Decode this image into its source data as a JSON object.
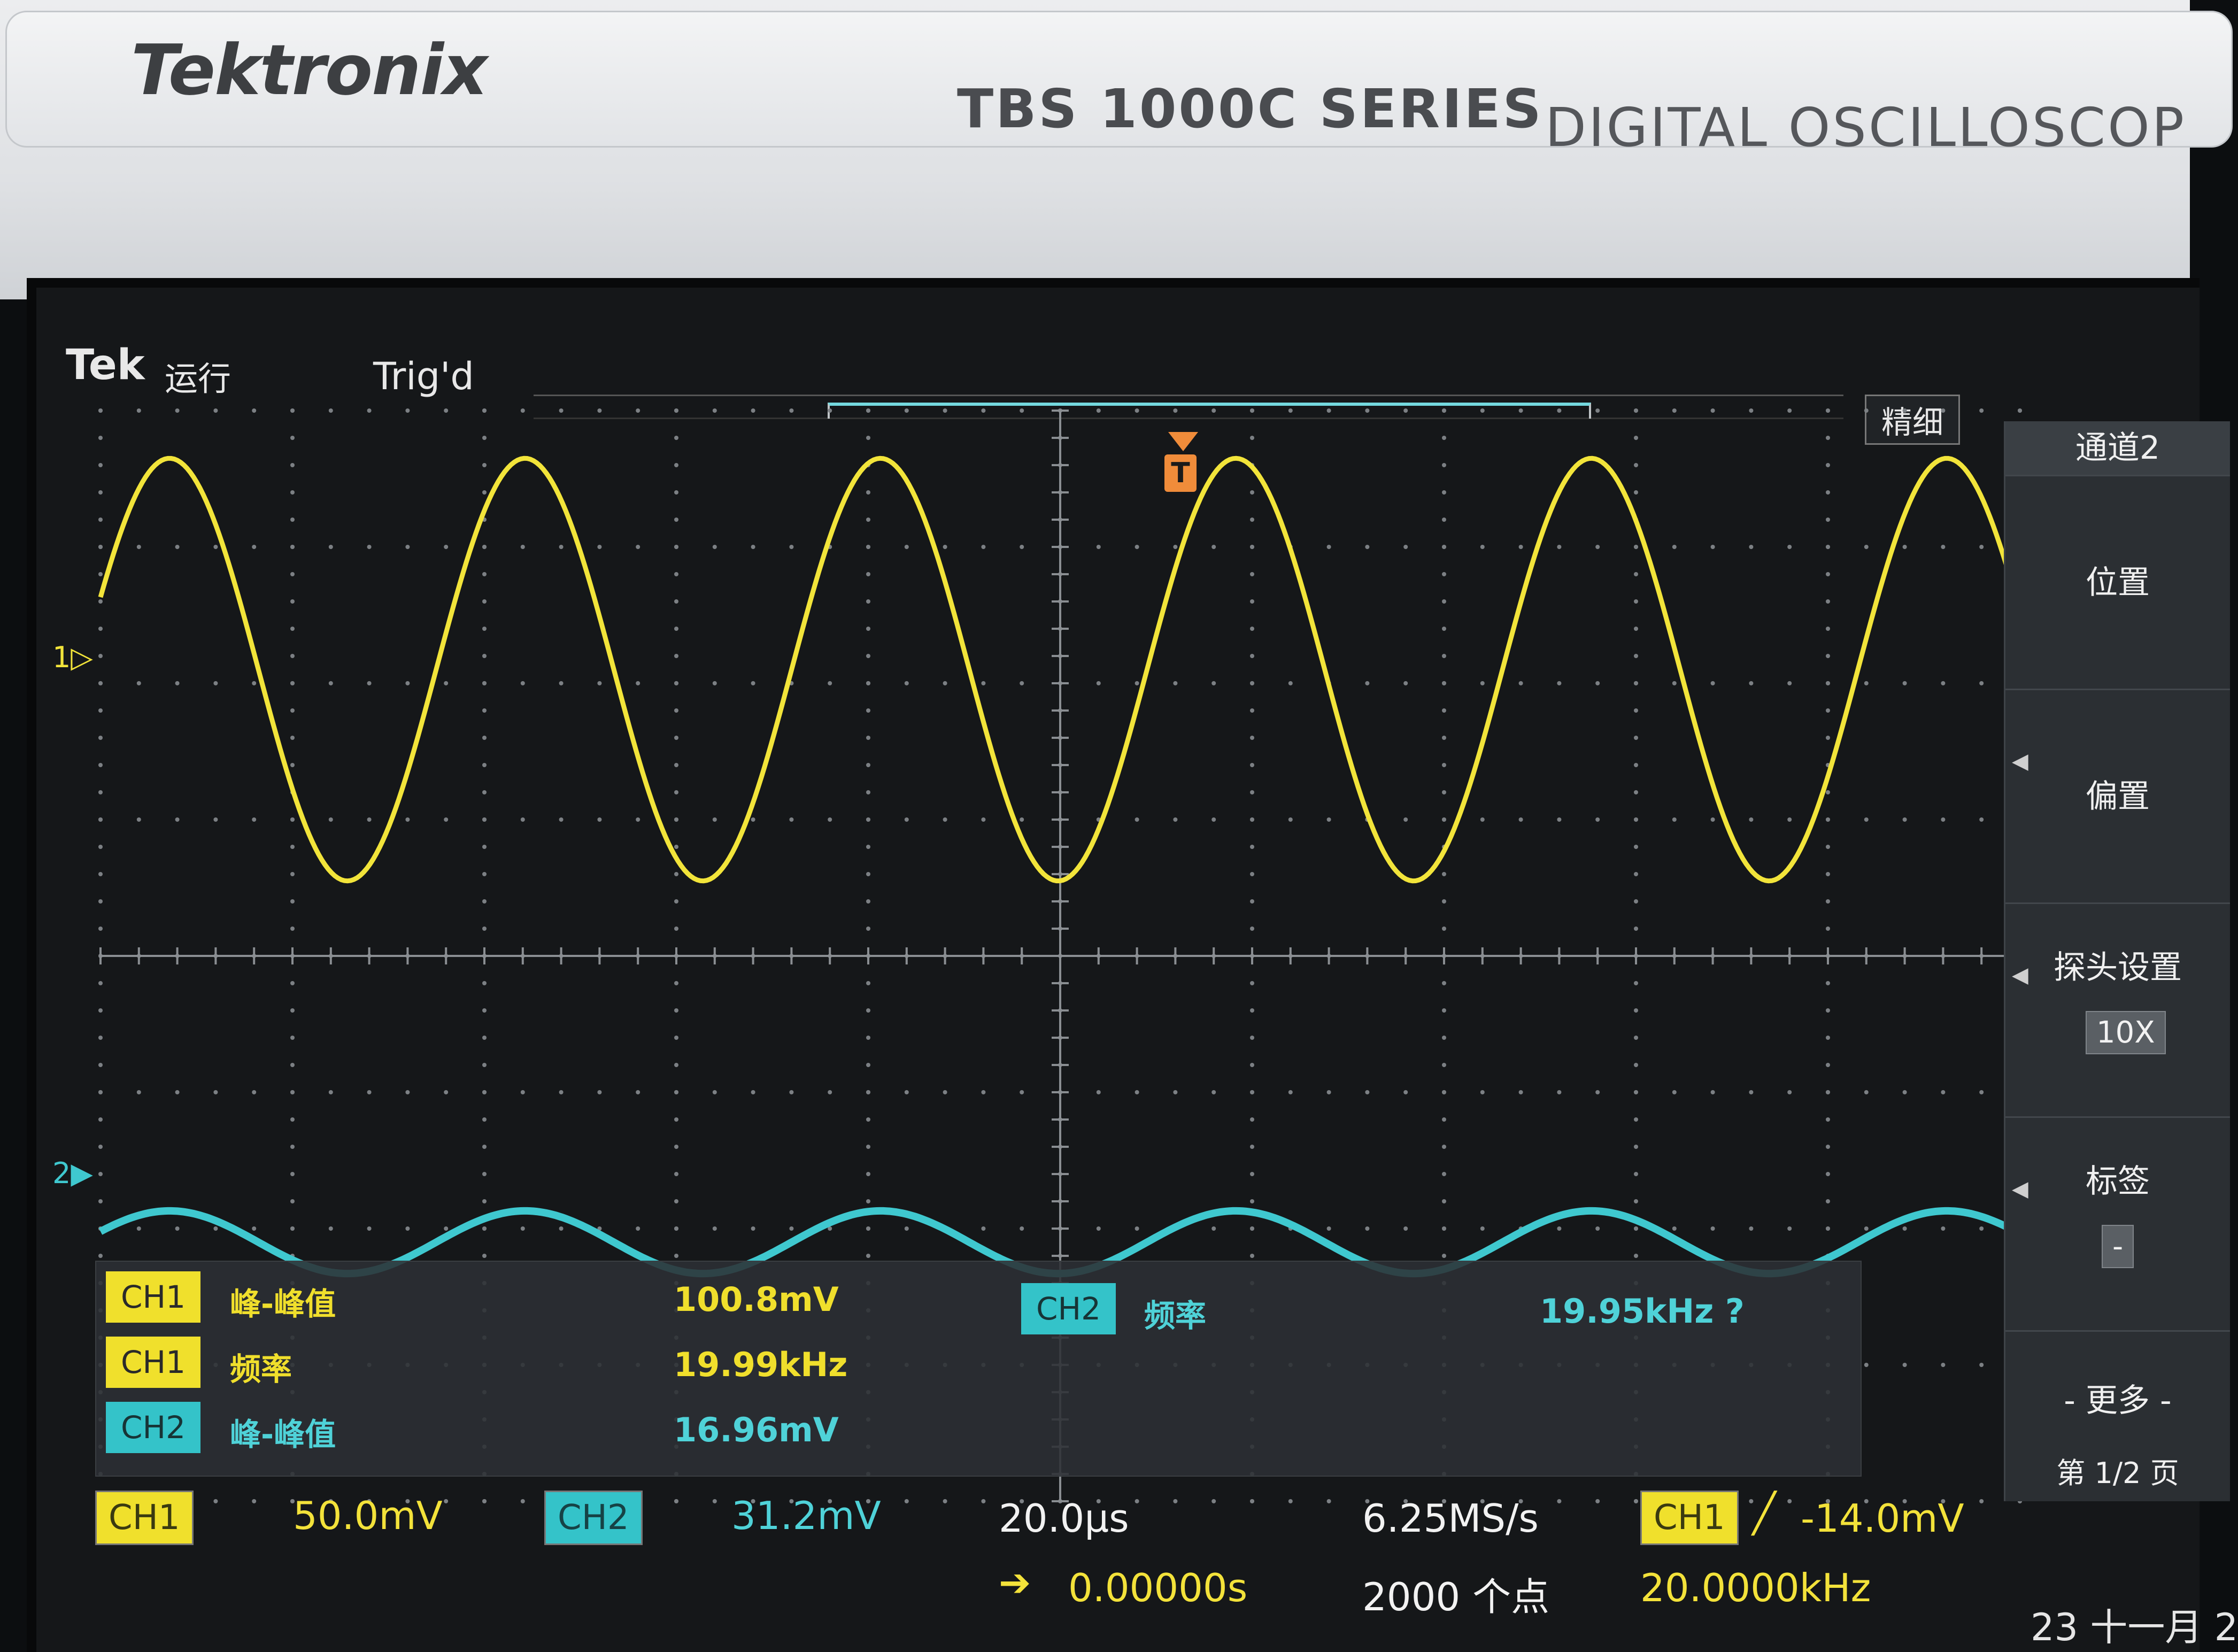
{
  "bezel": {
    "brand": "Tektronix",
    "series": "TBS 1000C SERIES",
    "model_description": "DIGITAL OSCILLOSCOP"
  },
  "status": {
    "logo": "Tek",
    "run_state": "运行",
    "trigger_state": "Trig'd",
    "mode": "精细",
    "trigger_marker": "T"
  },
  "channels": {
    "ch1_marker": "1▷",
    "ch2_marker": "2▶",
    "ch1_color": "#f0e02c",
    "ch2_color": "#34c3c9"
  },
  "measurements": [
    {
      "channel": "CH1",
      "label": "峰-峰值",
      "value": "100.8mV"
    },
    {
      "channel": "CH1",
      "label": "频率",
      "value": "19.99kHz"
    },
    {
      "channel": "CH2",
      "label": "峰-峰值",
      "value": "16.96mV"
    },
    {
      "channel": "CH2",
      "label": "频率",
      "value": "19.95kHz ?"
    }
  ],
  "status_bar": {
    "ch1_badge": "CH1",
    "ch1_scale": "50.0mV",
    "ch2_badge": "CH2",
    "ch2_scale": "31.2mV",
    "time_scale": "20.0µs",
    "sample_rate": "6.25MS/s",
    "trigger_badge": "CH1",
    "trigger_slope": "╱",
    "trigger_level": "-14.0mV",
    "horizontal_offset": "0.00000s",
    "record_length": "2000 个点",
    "trigger_frequency": "20.0000kHz",
    "date": "23 十一月 2"
  },
  "side_menu": {
    "title": "通道2",
    "items": [
      {
        "label": "位置"
      },
      {
        "label": "偏置"
      },
      {
        "label": "探头设置",
        "value": "10X"
      },
      {
        "label": "标签",
        "value": "-"
      },
      {
        "label": "- 更多 -",
        "sub": "第 1/2 页"
      }
    ]
  },
  "waveforms": {
    "ch1": {
      "cycles_on_screen": 5.4,
      "amplitude_divisions": 1.55,
      "center_division_from_top": 1.9
    },
    "ch2": {
      "cycles_on_screen": 5.4,
      "amplitude_divisions": 0.23,
      "center_division_from_top": 6.1
    }
  }
}
